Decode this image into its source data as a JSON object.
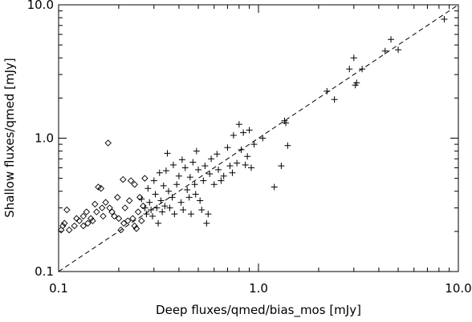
{
  "chart_data": {
    "type": "scatter",
    "title": "",
    "xlabel": "Deep fluxes/qmed/bias_mos [mJy]",
    "ylabel": "Shallow fluxes/qmed [mJy]",
    "xscale": "log",
    "yscale": "log",
    "xlim": [
      0.1,
      10.0
    ],
    "ylim": [
      0.1,
      10.0
    ],
    "x_ticks": [
      {
        "value": 0.1,
        "label": "0.1"
      },
      {
        "value": 1.0,
        "label": "1.0"
      },
      {
        "value": 10.0,
        "label": "10.0"
      }
    ],
    "y_ticks": [
      {
        "value": 0.1,
        "label": "0.1"
      },
      {
        "value": 1.0,
        "label": "1.0"
      },
      {
        "value": 10.0,
        "label": "10.0"
      }
    ],
    "grid": false,
    "reference_line": {
      "style": "dashed",
      "points": [
        [
          0.1,
          0.1
        ],
        [
          10.0,
          10.0
        ]
      ]
    },
    "series": [
      {
        "marker": "diamond",
        "points": [
          [
            0.103,
            0.205
          ],
          [
            0.107,
            0.23
          ],
          [
            0.105,
            0.22
          ],
          [
            0.11,
            0.29
          ],
          [
            0.113,
            0.205
          ],
          [
            0.12,
            0.22
          ],
          [
            0.123,
            0.25
          ],
          [
            0.127,
            0.24
          ],
          [
            0.133,
            0.26
          ],
          [
            0.133,
            0.22
          ],
          [
            0.138,
            0.28
          ],
          [
            0.14,
            0.23
          ],
          [
            0.145,
            0.25
          ],
          [
            0.148,
            0.24
          ],
          [
            0.152,
            0.32
          ],
          [
            0.155,
            0.28
          ],
          [
            0.158,
            0.43
          ],
          [
            0.163,
            0.42
          ],
          [
            0.165,
            0.3
          ],
          [
            0.167,
            0.26
          ],
          [
            0.172,
            0.33
          ],
          [
            0.177,
            0.92
          ],
          [
            0.18,
            0.3
          ],
          [
            0.185,
            0.28
          ],
          [
            0.19,
            0.26
          ],
          [
            0.197,
            0.36
          ],
          [
            0.2,
            0.25
          ],
          [
            0.205,
            0.205
          ],
          [
            0.21,
            0.49
          ],
          [
            0.212,
            0.23
          ],
          [
            0.215,
            0.3
          ],
          [
            0.222,
            0.24
          ],
          [
            0.226,
            0.34
          ],
          [
            0.23,
            0.48
          ],
          [
            0.235,
            0.25
          ],
          [
            0.24,
            0.45
          ],
          [
            0.24,
            0.22
          ],
          [
            0.245,
            0.21
          ],
          [
            0.25,
            0.28
          ],
          [
            0.255,
            0.36
          ],
          [
            0.26,
            0.24
          ],
          [
            0.265,
            0.31
          ],
          [
            0.27,
            0.5
          ]
        ]
      },
      {
        "marker": "plus",
        "points": [
          [
            0.26,
            0.35
          ],
          [
            0.27,
            0.3
          ],
          [
            0.275,
            0.27
          ],
          [
            0.28,
            0.42
          ],
          [
            0.285,
            0.33
          ],
          [
            0.29,
            0.29
          ],
          [
            0.295,
            0.26
          ],
          [
            0.3,
            0.48
          ],
          [
            0.305,
            0.38
          ],
          [
            0.31,
            0.3
          ],
          [
            0.315,
            0.23
          ],
          [
            0.32,
            0.55
          ],
          [
            0.325,
            0.34
          ],
          [
            0.33,
            0.28
          ],
          [
            0.335,
            0.44
          ],
          [
            0.34,
            0.31
          ],
          [
            0.345,
            0.57
          ],
          [
            0.35,
            0.77
          ],
          [
            0.355,
            0.4
          ],
          [
            0.36,
            0.3
          ],
          [
            0.37,
            0.36
          ],
          [
            0.375,
            0.63
          ],
          [
            0.38,
            0.27
          ],
          [
            0.39,
            0.45
          ],
          [
            0.4,
            0.52
          ],
          [
            0.41,
            0.33
          ],
          [
            0.415,
            0.69
          ],
          [
            0.42,
            0.29
          ],
          [
            0.43,
            0.6
          ],
          [
            0.44,
            0.41
          ],
          [
            0.45,
            0.36
          ],
          [
            0.455,
            0.51
          ],
          [
            0.46,
            0.27
          ],
          [
            0.47,
            0.66
          ],
          [
            0.48,
            0.45
          ],
          [
            0.485,
            0.38
          ],
          [
            0.49,
            0.8
          ],
          [
            0.5,
            0.58
          ],
          [
            0.51,
            0.34
          ],
          [
            0.52,
            0.29
          ],
          [
            0.53,
            0.48
          ],
          [
            0.54,
            0.62
          ],
          [
            0.55,
            0.23
          ],
          [
            0.56,
            0.27
          ],
          [
            0.57,
            0.54
          ],
          [
            0.58,
            0.7
          ],
          [
            0.6,
            0.45
          ],
          [
            0.62,
            0.76
          ],
          [
            0.63,
            0.58
          ],
          [
            0.65,
            0.48
          ],
          [
            0.67,
            0.52
          ],
          [
            0.7,
            0.85
          ],
          [
            0.72,
            0.62
          ],
          [
            0.74,
            0.55
          ],
          [
            0.75,
            1.05
          ],
          [
            0.78,
            0.65
          ],
          [
            0.8,
            1.27
          ],
          [
            0.82,
            0.82
          ],
          [
            0.84,
            1.1
          ],
          [
            0.86,
            0.63
          ],
          [
            0.88,
            0.73
          ],
          [
            0.9,
            1.15
          ],
          [
            0.92,
            0.6
          ],
          [
            0.95,
            0.9
          ],
          [
            1.05,
            1.0
          ],
          [
            1.2,
            0.43
          ],
          [
            1.3,
            0.62
          ],
          [
            1.35,
            1.35
          ],
          [
            1.37,
            1.3
          ],
          [
            1.4,
            0.88
          ],
          [
            2.2,
            2.25
          ],
          [
            2.4,
            1.95
          ],
          [
            2.85,
            3.3
          ],
          [
            3.0,
            4.0
          ],
          [
            3.05,
            2.5
          ],
          [
            3.1,
            2.6
          ],
          [
            3.3,
            3.3
          ],
          [
            4.3,
            4.5
          ],
          [
            4.6,
            5.5
          ],
          [
            5.0,
            4.6
          ],
          [
            8.5,
            7.8
          ]
        ]
      }
    ]
  }
}
